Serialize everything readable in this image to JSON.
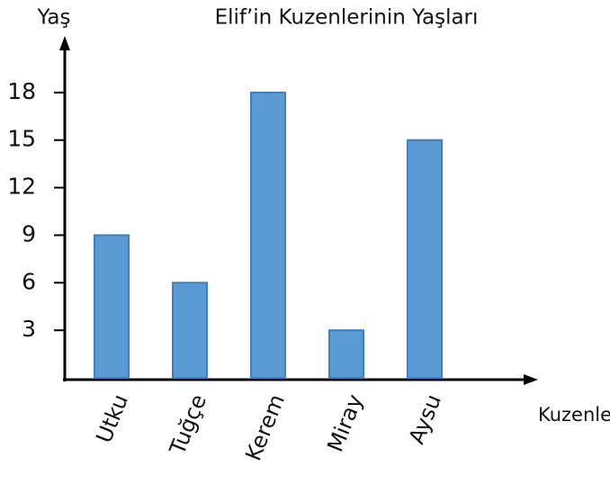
{
  "chart_data": {
    "type": "bar",
    "title": "Elif’in Kuzenlerinin Yaşları",
    "y_label": "Yaş",
    "x_label": "Kuzenleri",
    "categories": [
      "Utku",
      "Tuğçe",
      "Kerem",
      "Miray",
      "Aysu"
    ],
    "values": [
      9,
      6,
      18,
      3,
      15
    ],
    "color": "#5b9bd5",
    "ylim": [
      0,
      21
    ],
    "yticks": [
      3,
      6,
      9,
      12,
      15,
      18
    ],
    "grid": false
  }
}
